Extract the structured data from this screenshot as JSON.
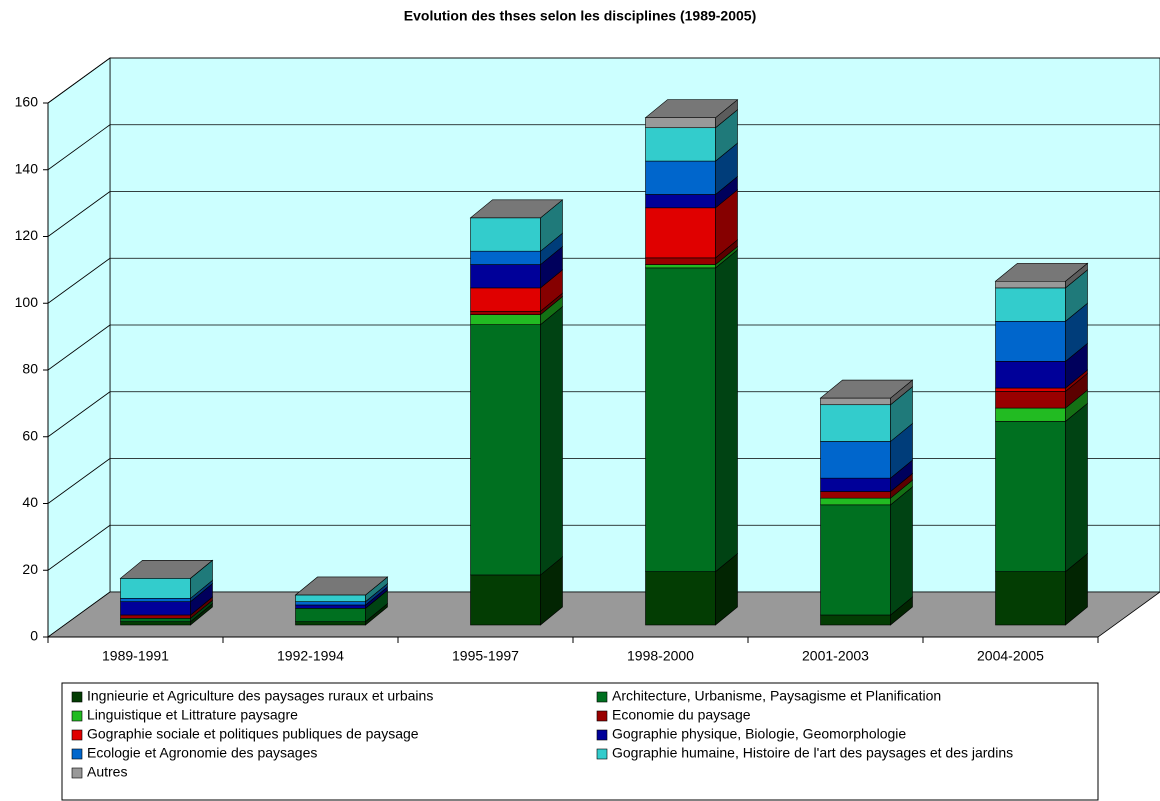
{
  "chart_data": {
    "type": "bar3d_stacked",
    "title": "Evolution des thses selon les disciplines (1989-2005)",
    "categories": [
      "1989-1991",
      "1992-1994",
      "1995-1997",
      "1998-2000",
      "2001-2003",
      "2004-2005"
    ],
    "ylim": [
      0,
      160
    ],
    "yticks": [
      0,
      20,
      40,
      60,
      80,
      100,
      120,
      140,
      160
    ],
    "grid": true,
    "series": [
      {
        "name": "Ingnieurie et Agriculture des paysages ruraux et urbains",
        "color": "#033d03",
        "values": [
          1,
          1,
          15,
          16,
          3,
          16
        ]
      },
      {
        "name": "Architecture, Urbanisme, Paysagisme et Planification",
        "color": "#007020",
        "values": [
          1,
          4,
          75,
          91,
          33,
          45
        ]
      },
      {
        "name": "Linguistique et Littrature paysagre",
        "color": "#22bb22",
        "values": [
          0,
          0,
          3,
          1,
          2,
          4
        ]
      },
      {
        "name": "Economie du paysage",
        "color": "#990000",
        "values": [
          1,
          0,
          1,
          2,
          2,
          5
        ]
      },
      {
        "name": "Gographie sociale et politiques publiques de paysage",
        "color": "#e00000",
        "values": [
          0,
          0,
          7,
          15,
          0,
          1
        ]
      },
      {
        "name": "Gographie physique, Biologie, Geomorphologie",
        "color": "#000099",
        "values": [
          4,
          1,
          7,
          4,
          4,
          8
        ]
      },
      {
        "name": "Ecologie et Agronomie des paysages",
        "color": "#0066cc",
        "values": [
          1,
          1,
          4,
          10,
          11,
          12
        ]
      },
      {
        "name": "Gographie humaine, Histoire de l'art des paysages et des jardins",
        "color": "#33cccc",
        "values": [
          6,
          2,
          10,
          10,
          11,
          10
        ]
      },
      {
        "name": "Autres",
        "color": "#999999",
        "values": [
          0,
          0,
          0,
          3,
          2,
          2
        ]
      }
    ]
  }
}
